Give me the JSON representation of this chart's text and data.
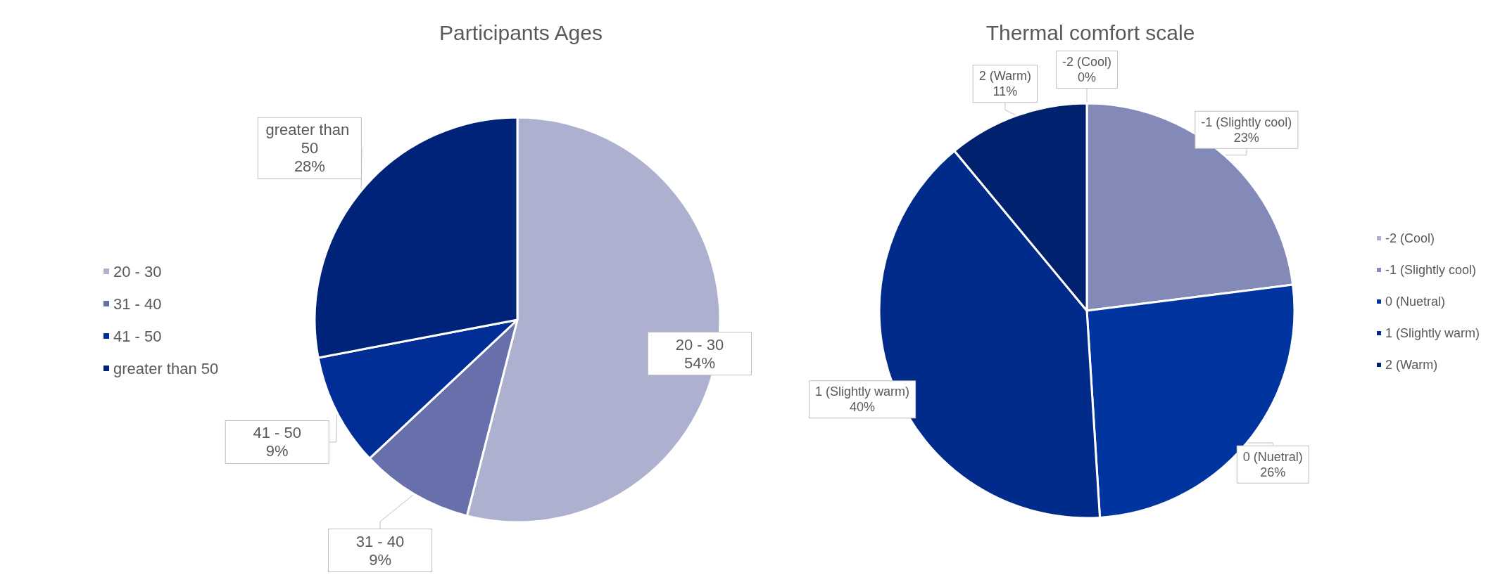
{
  "chart_data": [
    {
      "type": "pie",
      "title": "Participants Ages",
      "categories": [
        "20 - 30",
        "31 - 40",
        "41 - 50",
        "greater than 50"
      ],
      "values": [
        54,
        9,
        9,
        28
      ],
      "value_labels": [
        "54%",
        "9%",
        "9%",
        "28%"
      ],
      "colors": [
        "#adb1cf",
        "#6870ab",
        "#002d96",
        "#00237a"
      ],
      "legend": "left"
    },
    {
      "type": "pie",
      "title": "Thermal comfort scale",
      "categories": [
        "-2 (Cool)",
        "-1 (Slightly cool)",
        "0 (Nuetral)",
        "1 (Slightly warm)",
        "2 (Warm)"
      ],
      "values": [
        0,
        23,
        26,
        40,
        11
      ],
      "value_labels": [
        "0%",
        "23%",
        "26%",
        "40%",
        "11%"
      ],
      "colors": [
        "#adb1cf",
        "#838ab8",
        "#0035a0",
        "#002b8a",
        "#00226e"
      ],
      "legend": "right"
    }
  ]
}
